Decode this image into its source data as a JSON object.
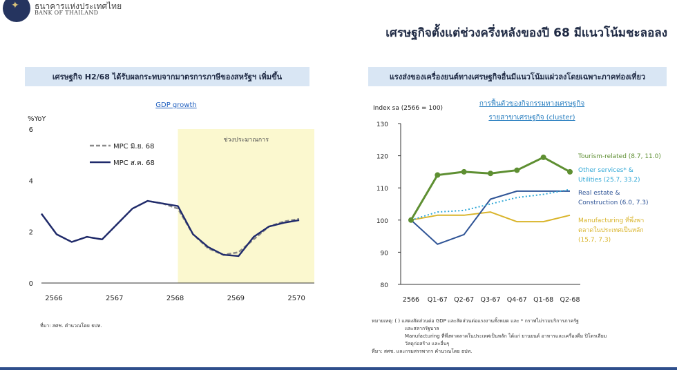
{
  "header": {
    "bank_name_thai": "ธนาคารแห่งประเทศไทย",
    "bank_name_en": "BANK OF THAILAND",
    "page_title": "เศรษฐกิจตั้งแต่ช่วงครึ่งหลังของปี 68 มีแนวโน้มชะลอลง"
  },
  "left_panel": {
    "title": "เศรษฐกิจ H2/68 ได้รับผลกระทบจากมาตรการภาษีของสหรัฐฯ เพิ่มขึ้น",
    "source": "ที่มา: สศช. คำนวณโดย ธปท."
  },
  "right_panel": {
    "title": "แรงส่งของเครื่องยนต์ทางเศรษฐกิจอื่นมีแนวโน้มแผ่วลงโดยเฉพาะภาคท่องเที่ยว",
    "notes": [
      "หมายเหตุ: ( ) แสดงสัดส่วนต่อ GDP และสัดส่วนต่อแรงงานทั้งหมด และ * กราฟไม่รวมบริการภาครัฐ",
      "และสลากรัฐบาล",
      "Manufacturing ที่พึ่งพาตลาดในประเทศเป็นหลัก ได้แก่ ยานยนต์ อาหารและเครื่องดื่ม ปิโตรเลียม",
      "วัสดุก่อสร้าง และอื่นๆ",
      "ที่มา: สศช. และกรมสรรพากร คำนวณโดย ธปท."
    ]
  },
  "colors": {
    "navy": "#1f2a6b",
    "dashed_gray": "#8a8a8a",
    "forecast_shade": "#fbf8cf",
    "tourism_green": "#5e8f32",
    "other_services_teal": "#2ea7d6",
    "real_estate_blue": "#2f5496",
    "manufacturing_gold": "#d9b42a"
  },
  "chart_data": [
    {
      "type": "line",
      "title": "GDP growth",
      "ylabel": "%YoY",
      "ylim": [
        0,
        6
      ],
      "yticks": [
        0,
        2,
        4,
        6
      ],
      "xlim": [
        2566,
        2570.5
      ],
      "xticks": [
        "2566",
        "2567",
        "2568",
        "2569",
        "2570"
      ],
      "shaded_region": {
        "label": "ช่วงประมาณการ",
        "x_start": 2568.25,
        "x_end": 2570.5
      },
      "legend_position": "top-left",
      "series": [
        {
          "name": "MPC มิ.ย. 68",
          "style": "dashed",
          "x": [
            2566,
            2566.25,
            2566.5,
            2566.75,
            2567,
            2567.25,
            2567.5,
            2567.75,
            2568,
            2568.25,
            2568.5,
            2568.75,
            2569,
            2569.25,
            2569.5,
            2569.75,
            2570,
            2570.25
          ],
          "values": [
            2.7,
            1.9,
            1.6,
            1.8,
            1.7,
            2.3,
            2.9,
            3.2,
            3.1,
            2.9,
            1.9,
            1.35,
            1.1,
            1.2,
            1.7,
            2.2,
            2.4,
            2.5
          ]
        },
        {
          "name": "MPC ส.ค. 68",
          "style": "solid",
          "x": [
            2566,
            2566.25,
            2566.5,
            2566.75,
            2567,
            2567.25,
            2567.5,
            2567.75,
            2568,
            2568.25,
            2568.5,
            2568.75,
            2569,
            2569.25,
            2569.5,
            2569.75,
            2570,
            2570.25
          ],
          "values": [
            2.7,
            1.9,
            1.6,
            1.8,
            1.7,
            2.3,
            2.9,
            3.2,
            3.1,
            3.0,
            1.9,
            1.4,
            1.1,
            1.05,
            1.8,
            2.2,
            2.35,
            2.45
          ]
        }
      ]
    },
    {
      "type": "line",
      "title": "การฟื้นตัวของกิจกรรมทางเศรษฐกิจ รายสาขาเศรษฐกิจ (cluster)",
      "ylabel": "Index sa (2566 = 100)",
      "ylim": [
        80,
        130
      ],
      "yticks": [
        80,
        90,
        100,
        110,
        120,
        130
      ],
      "categories": [
        "2566",
        "Q1-67",
        "Q2-67",
        "Q3-67",
        "Q4-67",
        "Q1-68",
        "Q2-68"
      ],
      "series": [
        {
          "name": "Tourism-related",
          "label": "Tourism-related (8.7, 11.0)",
          "style": "solid-markers",
          "values": [
            100,
            114,
            115,
            114.5,
            115.5,
            119.5,
            115
          ]
        },
        {
          "name": "Other services*",
          "label": "Other services* & Utilities (25.7, 33.2)",
          "style": "dotted",
          "values": [
            100,
            102.5,
            103,
            105,
            107,
            108,
            109.5
          ]
        },
        {
          "name": "Real estate",
          "label": "Real estate & Construction (6.0, 7.3)",
          "style": "solid",
          "values": [
            100,
            92.5,
            95.5,
            106.5,
            109,
            109,
            109
          ]
        },
        {
          "name": "Manufacturing",
          "label": "Manufacturing ที่พึ่งพาตลาดในประเทศเป็นหลัก (15.7, 7.3)",
          "style": "solid",
          "values": [
            100,
            101.5,
            101.5,
            102.5,
            99.5,
            99.5,
            101.5
          ]
        }
      ]
    }
  ]
}
